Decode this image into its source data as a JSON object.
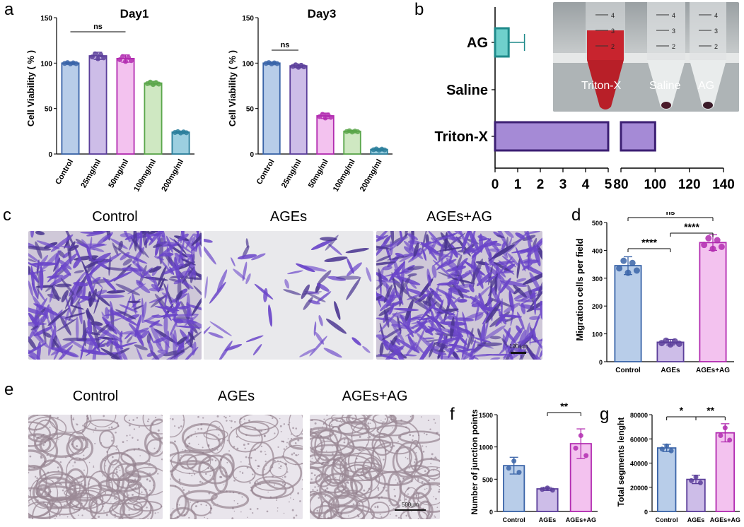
{
  "panel_letters": {
    "a": "a",
    "b": "b",
    "c": "c",
    "d": "d",
    "e": "e",
    "f": "f",
    "g": "g"
  },
  "colors": {
    "blue_fill": "#b8cde9",
    "blue_edge": "#3a64a8",
    "purple_fill": "#cdbde8",
    "purple_edge": "#5b3e9a",
    "pink_fill": "#f3c2ef",
    "pink_edge": "#b22bb0",
    "green_fill": "#cfe8c2",
    "green_edge": "#5aa64a",
    "teal_fill": "#9ccfe0",
    "teal_edge": "#2b7f9c",
    "aqua_fill": "#6fd0cc",
    "aqua_edge": "#1f8a8a",
    "violet_fill": "#a58ad6",
    "violet_edge": "#3c1f73"
  },
  "chart_data": [
    {
      "id": "a-day1",
      "type": "bar",
      "title": "Day1",
      "ylabel": "Cell Viability ( % )",
      "categories": [
        "Control",
        "25mg/ml",
        "50mg/ml",
        "100mg/ml",
        "200mg/ml"
      ],
      "values": [
        100,
        108,
        105,
        78,
        24
      ],
      "errors": [
        1,
        4,
        4,
        2,
        1
      ],
      "ylim": [
        0,
        150
      ],
      "yticks": [
        "0",
        "50",
        "100",
        "150"
      ],
      "significance": [
        {
          "label": "ns",
          "from": 0,
          "to": 2
        }
      ]
    },
    {
      "id": "a-day3",
      "type": "bar",
      "title": "Day3",
      "ylabel": "Cell Viability ( % )",
      "categories": [
        "Control",
        "25mg/ml",
        "50mg/ml",
        "100mg/ml",
        "200mg/ml"
      ],
      "values": [
        100,
        97,
        42,
        25,
        5
      ],
      "errors": [
        1,
        2,
        3,
        1,
        1
      ],
      "ylim": [
        0,
        150
      ],
      "yticks": [
        "0",
        "50",
        "100",
        "150"
      ],
      "significance": [
        {
          "label": "ns",
          "from": 0,
          "to": 1
        }
      ]
    },
    {
      "id": "b-hemolysis",
      "type": "bar",
      "orientation": "horizontal",
      "categories": [
        "AG",
        "Saline",
        "Triton-X"
      ],
      "values": [
        0.6,
        0,
        100
      ],
      "errors": [
        0.7,
        0,
        0
      ],
      "x_ticks_left": [
        "0",
        "1",
        "2",
        "3",
        "4",
        "5"
      ],
      "x_ticks_right": [
        "80",
        "100",
        "120",
        "140"
      ],
      "photo_labels": [
        "Triton-X",
        "Saline",
        "AG"
      ],
      "tube_marks": [
        "4",
        "3",
        "2"
      ]
    },
    {
      "id": "d-migration",
      "type": "bar",
      "ylabel": "Migration cells per field",
      "categories": [
        "Control",
        "AGEs",
        "AGEs+AG"
      ],
      "values": [
        345,
        70,
        428
      ],
      "errors": [
        32,
        10,
        28
      ],
      "ylim": [
        0,
        500
      ],
      "yticks": [
        "0",
        "100",
        "200",
        "300",
        "400",
        "500"
      ],
      "significance": [
        {
          "label": "****",
          "from": 0,
          "to": 1
        },
        {
          "label": "****",
          "from": 1,
          "to": 2
        },
        {
          "label": "ns",
          "from": 0,
          "to": 2
        }
      ]
    },
    {
      "id": "f-junction",
      "type": "bar",
      "ylabel": "Number of junction points",
      "categories": [
        "Control",
        "AGEs",
        "AGEs+AG"
      ],
      "values": [
        710,
        350,
        1050
      ],
      "errors": [
        130,
        25,
        230
      ],
      "ylim": [
        0,
        1500
      ],
      "yticks": [
        "0",
        "500",
        "1000",
        "1500"
      ],
      "significance": [
        {
          "label": "**",
          "from": 1,
          "to": 2
        }
      ]
    },
    {
      "id": "g-segments",
      "type": "bar",
      "ylabel": "Total segments lenght",
      "categories": [
        "Control",
        "AGEs",
        "AGEs+AG"
      ],
      "values": [
        52500,
        26500,
        65000
      ],
      "errors": [
        3000,
        3500,
        7500
      ],
      "ylim": [
        0,
        80000
      ],
      "yticks": [
        "0",
        "20000",
        "40000",
        "60000",
        "80000"
      ],
      "significance": [
        {
          "label": "*",
          "from": 0,
          "to": 1
        },
        {
          "label": "**",
          "from": 1,
          "to": 2
        }
      ]
    }
  ],
  "images_c": [
    {
      "label": "Control"
    },
    {
      "label": "AGEs"
    },
    {
      "label": "AGEs+AG"
    }
  ],
  "images_e": [
    {
      "label": "Control"
    },
    {
      "label": "AGEs"
    },
    {
      "label": "AGEs+AG"
    }
  ],
  "scalebar_c": "100 μm",
  "scalebar_e": "500μm"
}
